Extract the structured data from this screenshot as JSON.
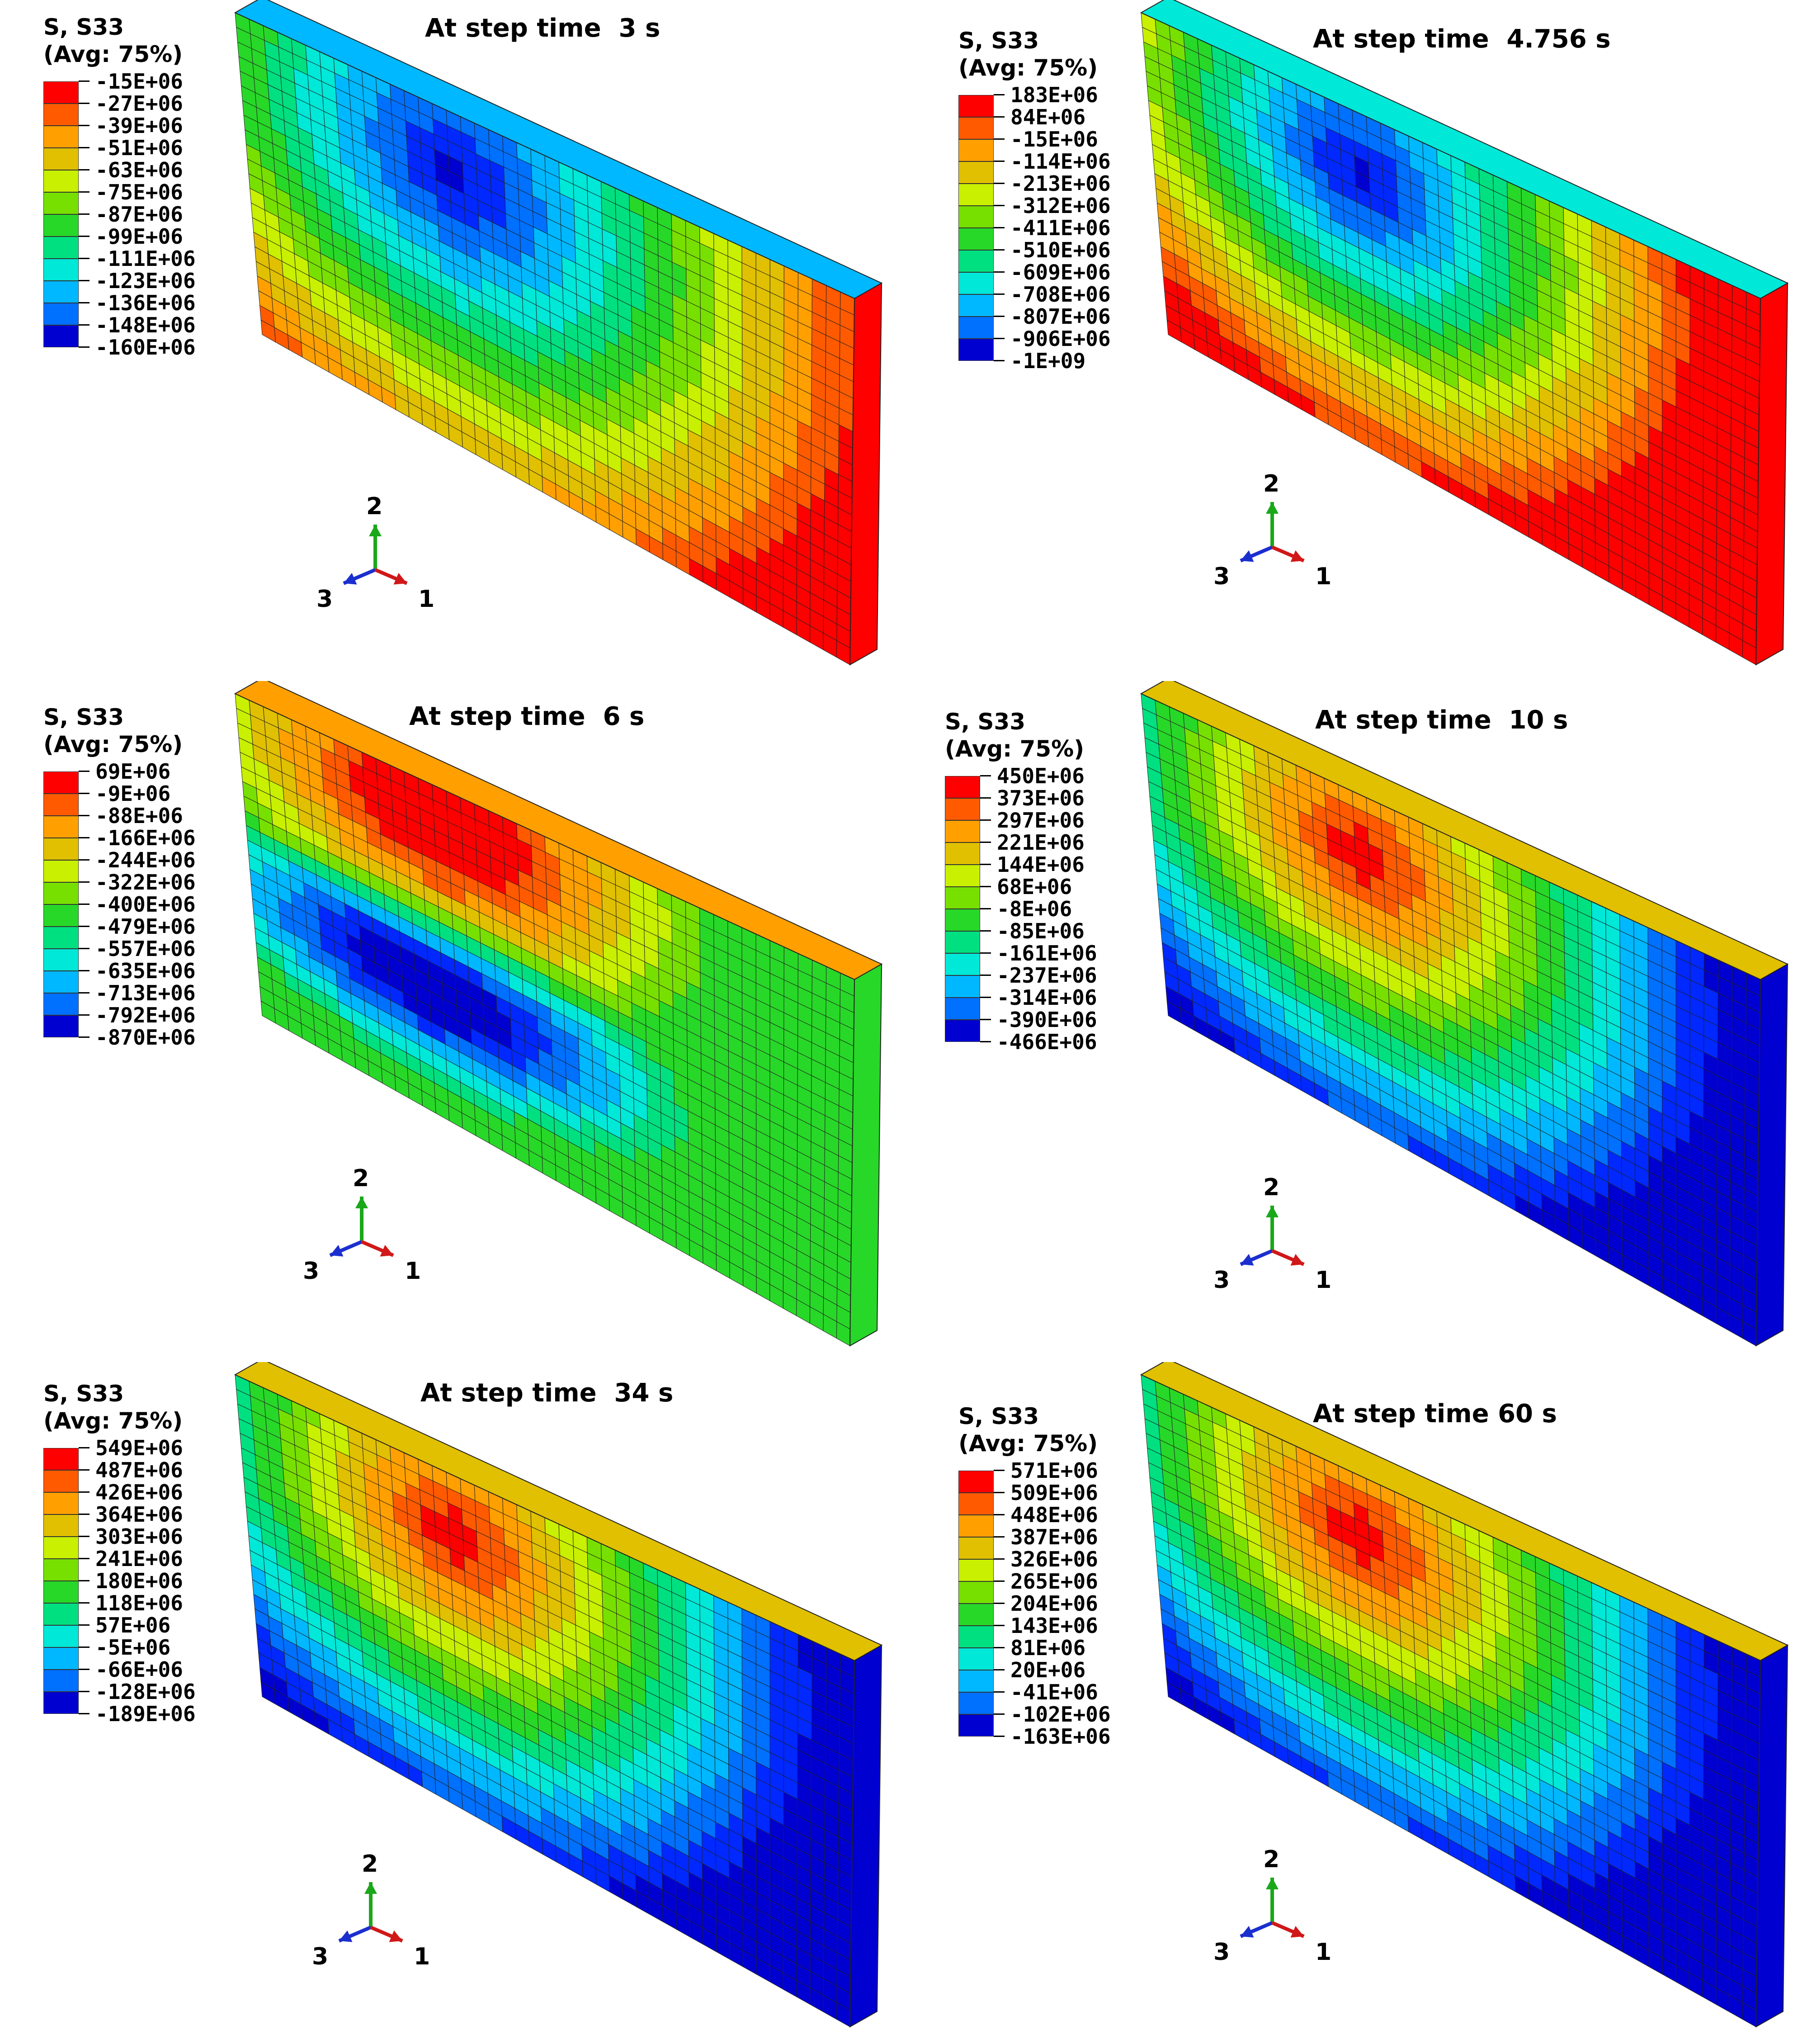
{
  "legend_colors": [
    "#ff0000",
    "#ff5a00",
    "#ffa000",
    "#e0c000",
    "#c8f000",
    "#78e000",
    "#28d828",
    "#00e080",
    "#00e8d8",
    "#00b8ff",
    "#0070ff",
    "#0028ff",
    "#0000d0"
  ],
  "axis_labels": {
    "up": "2",
    "left": "3",
    "right": "1"
  },
  "panels": [
    {
      "title": "At step time  3 s",
      "legend_title": "S, S33\n(Avg: 75%)",
      "legend_values": [
        "-15E+06",
        "-27E+06",
        "-39E+06",
        "-51E+06",
        "-63E+06",
        "-75E+06",
        "-87E+06",
        "-99E+06",
        "-111E+06",
        "-123E+06",
        "-136E+06",
        "-148E+06",
        "-160E+06"
      ],
      "contour_pattern": "compression-low"
    },
    {
      "title": "At step time  4.756 s",
      "legend_title": "S, S33\n(Avg: 75%)",
      "legend_values": [
        "183E+06",
        "84E+06",
        "-15E+06",
        "-114E+06",
        "-213E+06",
        "-312E+06",
        "-411E+06",
        "-510E+06",
        "-609E+06",
        "-708E+06",
        "-807E+06",
        "-906E+06",
        "-1E+09"
      ],
      "contour_pattern": "core-compression"
    },
    {
      "title": "At step time  6 s",
      "legend_title": "S, S33\n(Avg: 75%)",
      "legend_values": [
        "69E+06",
        "-9E+06",
        "-88E+06",
        "-166E+06",
        "-244E+06",
        "-322E+06",
        "-400E+06",
        "-479E+06",
        "-557E+06",
        "-635E+06",
        "-713E+06",
        "-792E+06",
        "-870E+06"
      ],
      "contour_pattern": "transition"
    },
    {
      "title": "At step time  10 s",
      "legend_title": "S, S33\n(Avg: 75%)",
      "legend_values": [
        "450E+06",
        "373E+06",
        "297E+06",
        "221E+06",
        "144E+06",
        "68E+06",
        "-8E+06",
        "-85E+06",
        "-161E+06",
        "-237E+06",
        "-314E+06",
        "-390E+06",
        "-466E+06"
      ],
      "contour_pattern": "tension-core"
    },
    {
      "title": "At step time  34 s",
      "legend_title": "S, S33\n(Avg: 75%)",
      "legend_values": [
        "549E+06",
        "487E+06",
        "426E+06",
        "364E+06",
        "303E+06",
        "241E+06",
        "180E+06",
        "118E+06",
        "57E+06",
        "-5E+06",
        "-66E+06",
        "-128E+06",
        "-189E+06"
      ],
      "contour_pattern": "tension-core"
    },
    {
      "title": "At step time 60 s",
      "legend_title": "S, S33\n(Avg: 75%)",
      "legend_values": [
        "571E+06",
        "509E+06",
        "448E+06",
        "387E+06",
        "326E+06",
        "265E+06",
        "204E+06",
        "143E+06",
        "81E+06",
        "20E+06",
        "-41E+06",
        "-102E+06",
        "-163E+06"
      ],
      "contour_pattern": "tension-core"
    }
  ]
}
